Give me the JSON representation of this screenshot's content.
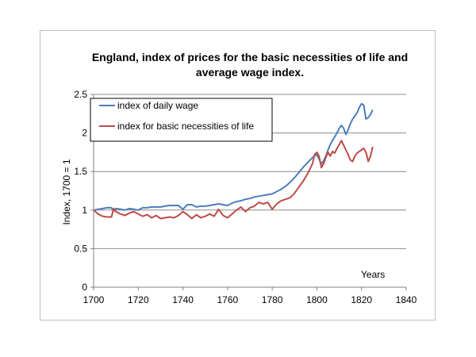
{
  "chart_data": {
    "type": "line",
    "title_lines": [
      "England, index of prices for the basic necessities of life and",
      "average wage index."
    ],
    "xlabel": "Years",
    "ylabel": "Index, 1700 = 1",
    "xlim": [
      1700,
      1840
    ],
    "ylim": [
      0,
      2.5
    ],
    "x_ticks": [
      "1700",
      "1720",
      "1740",
      "1760",
      "1780",
      "1800",
      "1820",
      "1840"
    ],
    "y_ticks": [
      "0",
      "0.5",
      "1",
      "1.5",
      "2",
      "2.5"
    ],
    "grid": "horizontal",
    "legend_position": "top-left",
    "series": [
      {
        "name": "index of daily wage",
        "color": "#4a7ebb",
        "x": [
          1700,
          1702,
          1704,
          1706,
          1708,
          1709,
          1710,
          1712,
          1714,
          1716,
          1718,
          1720,
          1722,
          1724,
          1726,
          1728,
          1730,
          1732,
          1734,
          1736,
          1738,
          1740,
          1742,
          1744,
          1746,
          1748,
          1750,
          1752,
          1754,
          1756,
          1758,
          1760,
          1762,
          1764,
          1766,
          1768,
          1770,
          1772,
          1774,
          1776,
          1778,
          1780,
          1782,
          1784,
          1786,
          1788,
          1790,
          1792,
          1794,
          1796,
          1798,
          1800,
          1801,
          1802,
          1803,
          1804,
          1805,
          1806,
          1807,
          1808,
          1809,
          1810,
          1811,
          1812,
          1813,
          1814,
          1815,
          1816,
          1817,
          1818,
          1819,
          1820,
          1821,
          1822,
          1823,
          1824,
          1825
        ],
        "values": [
          1.0,
          1.01,
          1.02,
          1.03,
          1.03,
          0.99,
          1.02,
          1.01,
          1.0,
          1.02,
          1.01,
          1.0,
          1.03,
          1.03,
          1.04,
          1.04,
          1.04,
          1.05,
          1.06,
          1.06,
          1.06,
          1.01,
          1.07,
          1.07,
          1.04,
          1.05,
          1.05,
          1.06,
          1.07,
          1.08,
          1.07,
          1.06,
          1.09,
          1.11,
          1.12,
          1.14,
          1.15,
          1.17,
          1.18,
          1.19,
          1.2,
          1.21,
          1.24,
          1.27,
          1.31,
          1.36,
          1.42,
          1.49,
          1.56,
          1.62,
          1.68,
          1.72,
          1.66,
          1.6,
          1.64,
          1.7,
          1.78,
          1.85,
          1.9,
          1.95,
          2.0,
          2.06,
          2.1,
          2.06,
          1.98,
          2.04,
          2.12,
          2.18,
          2.22,
          2.26,
          2.33,
          2.38,
          2.36,
          2.18,
          2.2,
          2.24,
          2.3
        ]
      },
      {
        "name": "index for basic necessities of life",
        "color": "#be4b48",
        "x": [
          1700,
          1702,
          1704,
          1706,
          1708,
          1709,
          1710,
          1712,
          1714,
          1716,
          1718,
          1720,
          1722,
          1724,
          1726,
          1728,
          1730,
          1732,
          1734,
          1736,
          1738,
          1740,
          1742,
          1744,
          1746,
          1748,
          1750,
          1752,
          1754,
          1756,
          1758,
          1760,
          1762,
          1764,
          1766,
          1768,
          1770,
          1772,
          1774,
          1776,
          1778,
          1780,
          1782,
          1784,
          1786,
          1788,
          1790,
          1792,
          1794,
          1796,
          1798,
          1799,
          1800,
          1801,
          1802,
          1803,
          1804,
          1805,
          1806,
          1807,
          1808,
          1809,
          1810,
          1811,
          1812,
          1813,
          1814,
          1815,
          1816,
          1817,
          1818,
          1819,
          1820,
          1821,
          1822,
          1823,
          1824,
          1825
        ],
        "values": [
          1.0,
          0.95,
          0.92,
          0.91,
          0.91,
          1.02,
          0.98,
          0.95,
          0.93,
          0.96,
          0.98,
          0.95,
          0.92,
          0.94,
          0.9,
          0.93,
          0.89,
          0.9,
          0.91,
          0.9,
          0.93,
          0.98,
          0.94,
          0.89,
          0.94,
          0.9,
          0.92,
          0.95,
          0.92,
          1.01,
          0.93,
          0.9,
          0.95,
          1.0,
          1.04,
          0.98,
          1.03,
          1.05,
          1.1,
          1.08,
          1.1,
          1.01,
          1.08,
          1.12,
          1.14,
          1.16,
          1.22,
          1.3,
          1.38,
          1.48,
          1.6,
          1.72,
          1.75,
          1.7,
          1.55,
          1.6,
          1.68,
          1.75,
          1.7,
          1.76,
          1.74,
          1.8,
          1.85,
          1.9,
          1.84,
          1.78,
          1.72,
          1.65,
          1.63,
          1.7,
          1.74,
          1.76,
          1.78,
          1.8,
          1.75,
          1.63,
          1.7,
          1.82
        ]
      }
    ]
  }
}
